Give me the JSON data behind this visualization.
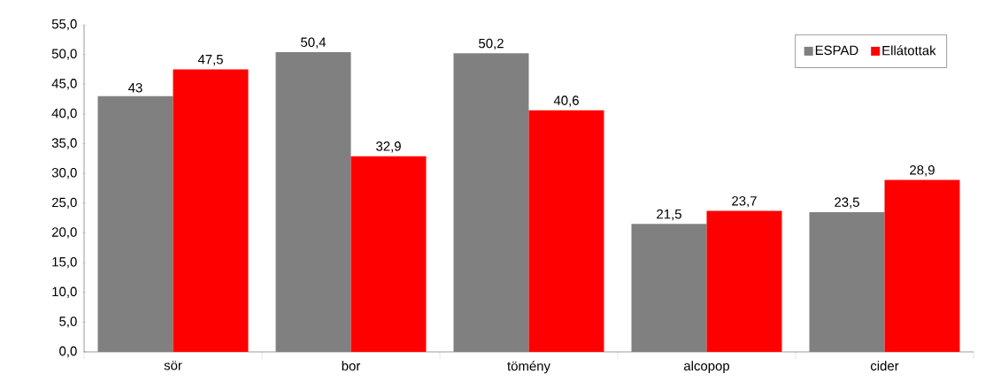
{
  "chart_data": {
    "type": "bar",
    "categories": [
      "sör",
      "bor",
      "tömény",
      "alcopop",
      "cider"
    ],
    "series": [
      {
        "name": "ESPAD",
        "color": "#808080",
        "values": [
          43,
          50.4,
          50.2,
          21.5,
          23.5
        ],
        "value_labels": [
          "43",
          "50,4",
          "50,2",
          "21,5",
          "23,5"
        ]
      },
      {
        "name": "Ellátottak",
        "color": "#ff0000",
        "values": [
          47.5,
          32.9,
          40.6,
          23.7,
          28.9
        ],
        "value_labels": [
          "47,5",
          "32,9",
          "40,6",
          "23,7",
          "28,9"
        ]
      }
    ],
    "ylim": [
      0,
      55
    ],
    "yticks": [
      {
        "value": 0,
        "label": "0,0"
      },
      {
        "value": 5,
        "label": "5,0"
      },
      {
        "value": 10,
        "label": "10,0"
      },
      {
        "value": 15,
        "label": "15,0"
      },
      {
        "value": 20,
        "label": "20,0"
      },
      {
        "value": 25,
        "label": "25,0"
      },
      {
        "value": 30,
        "label": "30,0"
      },
      {
        "value": 35,
        "label": "35,0"
      },
      {
        "value": 40,
        "label": "40,0"
      },
      {
        "value": 45,
        "label": "45,0"
      },
      {
        "value": 50,
        "label": "50,0"
      },
      {
        "value": 55,
        "label": "55,0"
      }
    ],
    "legend": "top right"
  }
}
